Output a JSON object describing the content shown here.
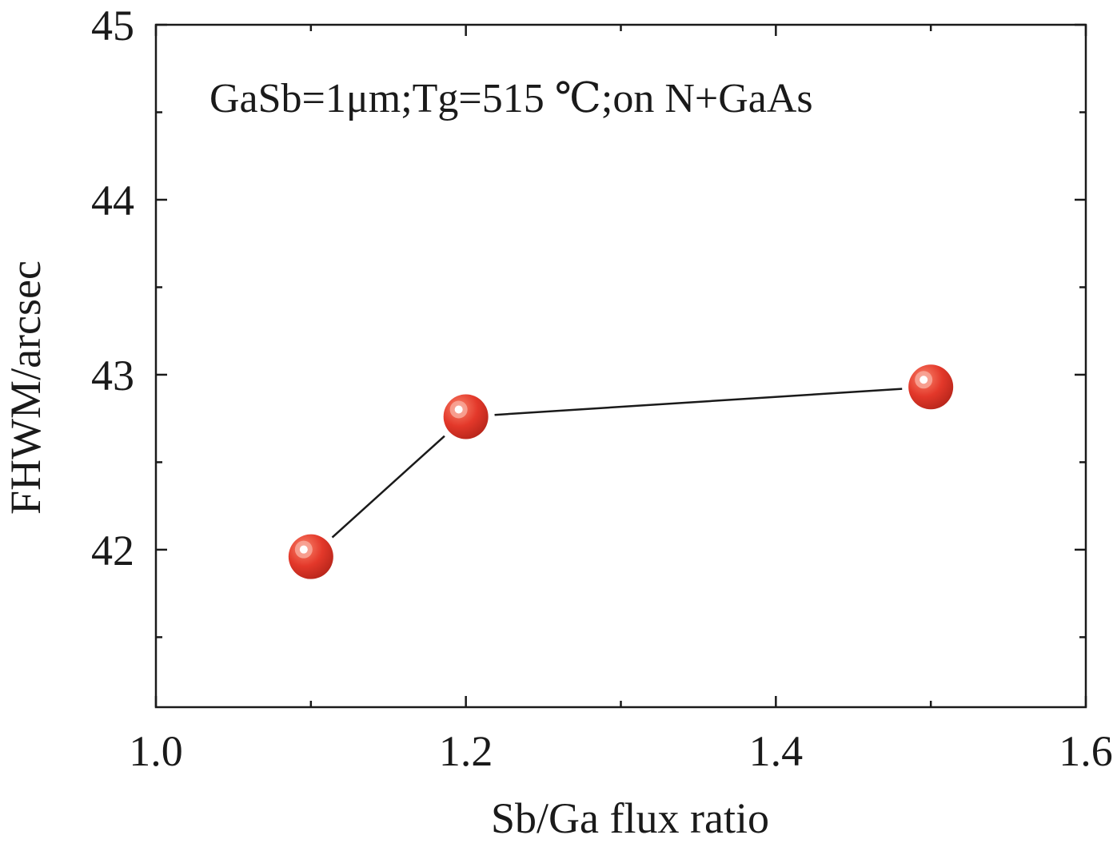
{
  "chart_data": {
    "type": "scatter",
    "annotation": "GaSb=1μm;Tg=515 ℃;on N+GaAs",
    "xlabel": "Sb/Ga flux ratio",
    "ylabel": "FHWM/arcsec",
    "xlim": [
      1.0,
      1.6
    ],
    "ylim": [
      41.1,
      45.0
    ],
    "xticks": [
      1.0,
      1.2,
      1.4,
      1.6
    ],
    "xtick_labels": [
      "1.0",
      "1.2",
      "1.4",
      "1.6"
    ],
    "xminor_ticks": [
      1.1,
      1.3,
      1.5
    ],
    "yticks": [
      42,
      43,
      44,
      45
    ],
    "ytick_labels": [
      "42",
      "43",
      "44",
      "45"
    ],
    "yminor_ticks": [
      41.5,
      42.5,
      43.5,
      44.5
    ],
    "grid": false,
    "connected": true,
    "series": [
      {
        "marker": "sphere",
        "color": "#e03a2c",
        "x": [
          1.1,
          1.2,
          1.5
        ],
        "y": [
          41.96,
          42.76,
          42.93
        ]
      }
    ]
  }
}
